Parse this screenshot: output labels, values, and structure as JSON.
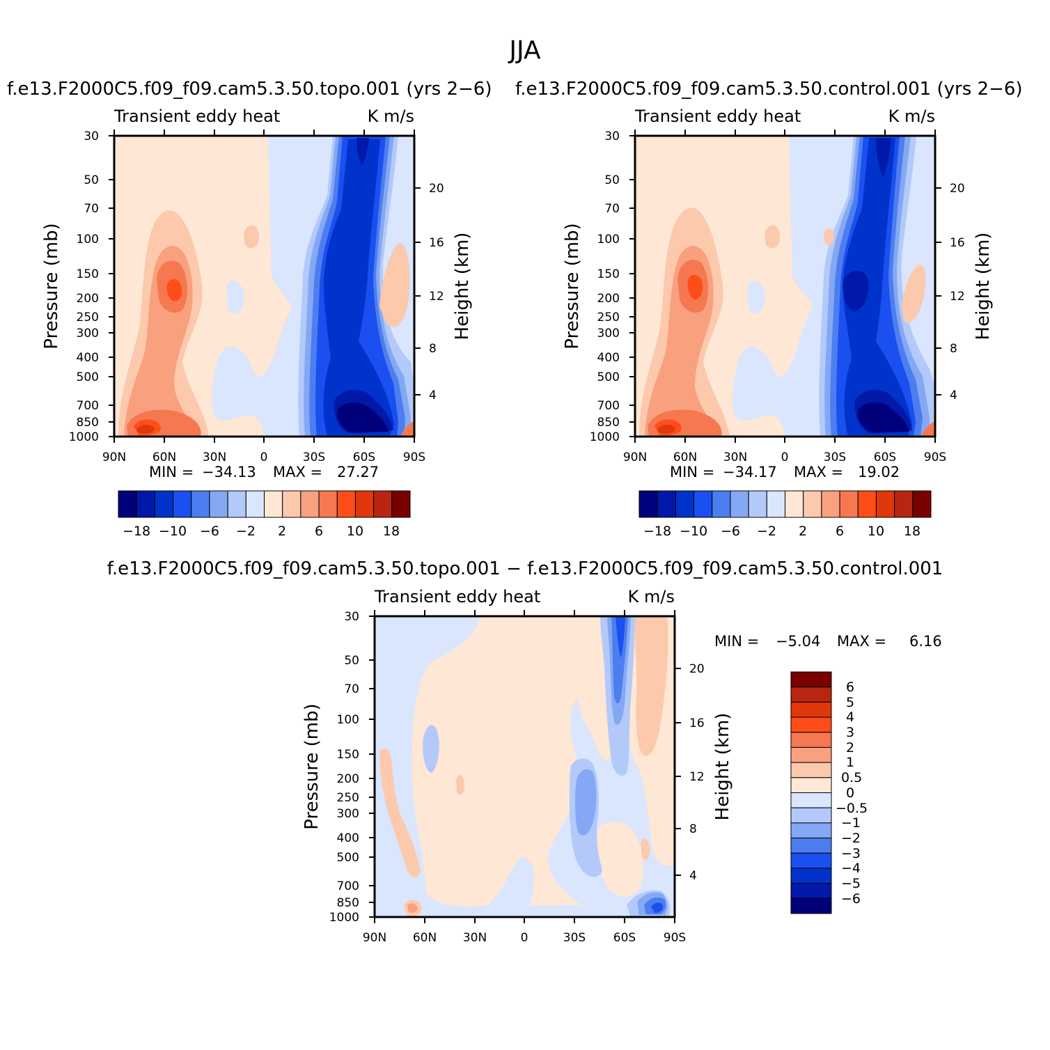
{
  "page_title": "JJA",
  "chart_data": [
    {
      "type": "heatmap",
      "title": "f.e13.F2000C5.f09_f09.cam5.3.50.topo.001 (yrs 2-6)",
      "left_string": "Transient eddy heat",
      "right_string": "K m/s",
      "ylabel": "Pressure (mb)",
      "ylabel_right": "Height (km)",
      "x_ticks": [
        "90N",
        "60N",
        "30N",
        "0",
        "30S",
        "60S",
        "90S"
      ],
      "y_ticks": [
        "30",
        "50",
        "70",
        "100",
        "150",
        "200",
        "250",
        "300",
        "400",
        "500",
        "700",
        "850",
        "1000"
      ],
      "height_ticks": [
        "20",
        "16",
        "12",
        "8",
        "4"
      ],
      "ylim": [
        1000,
        30
      ],
      "min_label": "MIN =",
      "min_value": "-34.13",
      "max_label": "MAX =",
      "max_value": "27.27",
      "colorbar_ticks": [
        "-18",
        "-10",
        "-6",
        "-2",
        "2",
        "6",
        "10",
        "18"
      ]
    },
    {
      "type": "heatmap",
      "title": "f.e13.F2000C5.f09_f09.cam5.3.50.control.001 (yrs 2-6)",
      "left_string": "Transient eddy heat",
      "right_string": "K m/s",
      "ylabel": "Pressure (mb)",
      "ylabel_right": "Height (km)",
      "x_ticks": [
        "90N",
        "60N",
        "30N",
        "0",
        "30S",
        "60S",
        "90S"
      ],
      "y_ticks": [
        "30",
        "50",
        "70",
        "100",
        "150",
        "200",
        "250",
        "300",
        "400",
        "500",
        "700",
        "850",
        "1000"
      ],
      "height_ticks": [
        "20",
        "16",
        "12",
        "8",
        "4"
      ],
      "ylim": [
        1000,
        30
      ],
      "min_label": "MIN =",
      "min_value": "-34.17",
      "max_label": "MAX =",
      "max_value": "19.02",
      "colorbar_ticks": [
        "-18",
        "-10",
        "-6",
        "-2",
        "2",
        "6",
        "10",
        "18"
      ]
    },
    {
      "type": "heatmap",
      "title": "f.e13.F2000C5.f09_f09.cam5.3.50.topo.001 - f.e13.F2000C5.f09_f09.cam5.3.50.control.001",
      "left_string": "Transient eddy heat",
      "right_string": "K m/s",
      "ylabel": "Pressure (mb)",
      "ylabel_right": "Height (km)",
      "x_ticks": [
        "90N",
        "60N",
        "30N",
        "0",
        "30S",
        "60S",
        "90S"
      ],
      "y_ticks": [
        "30",
        "50",
        "70",
        "100",
        "150",
        "200",
        "250",
        "300",
        "400",
        "500",
        "700",
        "850",
        "1000"
      ],
      "height_ticks": [
        "20",
        "16",
        "12",
        "8",
        "4"
      ],
      "ylim": [
        1000,
        30
      ],
      "min_label": "MIN =",
      "min_value": "-5.04",
      "max_label": "MAX =",
      "max_value": "6.16",
      "colorbar_ticks": [
        "6",
        "5",
        "4",
        "3",
        "2",
        "1",
        "0.5",
        "0",
        "-0.5",
        "-1",
        "-2",
        "-3",
        "-4",
        "-5",
        "-6"
      ]
    }
  ],
  "colors": {
    "palette": [
      "#00007a",
      "#0019a8",
      "#0033cc",
      "#1a4ff0",
      "#4d7ef0",
      "#85a8f5",
      "#b3c9fa",
      "#d9e6fd",
      "#fee7d5",
      "#fcc9ad",
      "#f9a07f",
      "#f57850",
      "#ff4d1a",
      "#e0380a",
      "#b82510",
      "#7a0000"
    ]
  }
}
